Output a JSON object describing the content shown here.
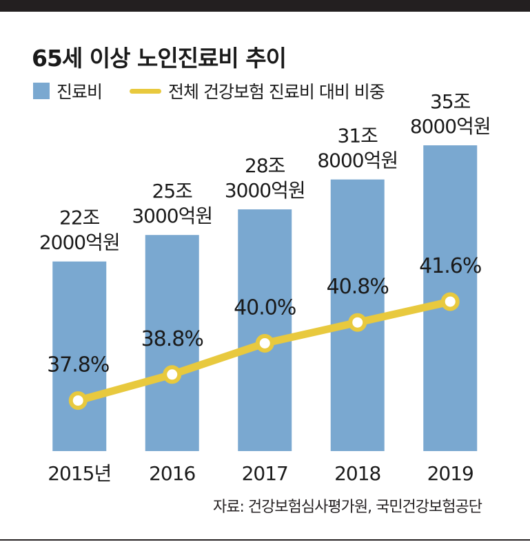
{
  "title": "65세 이상 노인진료비 추이",
  "legend": {
    "bar_label": "진료비",
    "line_label": "전체 건강보험 진료비 대비 비중"
  },
  "source": "자료: 건강보험심사평가원, 국민건강보험공단",
  "colors": {
    "bar": "#7aa8d0",
    "line": "#e8c93e",
    "marker_fill": "#ffffff",
    "text": "#1a1a1a",
    "rule": "#231f20"
  },
  "chart_data": {
    "type": "bar",
    "categories": [
      "2015년",
      "2016",
      "2017",
      "2018",
      "2019"
    ],
    "series": [
      {
        "name": "진료비",
        "type": "bar",
        "values": [
          22.2,
          25.3,
          28.3,
          31.8,
          35.8
        ],
        "unit": "조원",
        "labels": [
          [
            "22조",
            "2000억원"
          ],
          [
            "25조",
            "3000억원"
          ],
          [
            "28조",
            "3000억원"
          ],
          [
            "31조",
            "8000억원"
          ],
          [
            "35조",
            "8000억원"
          ]
        ]
      },
      {
        "name": "전체 건강보험 진료비 대비 비중",
        "type": "line",
        "values": [
          37.8,
          38.8,
          40.0,
          40.8,
          41.6
        ],
        "unit": "%",
        "labels": [
          "37.8%",
          "38.8%",
          "40.0%",
          "40.8%",
          "41.6%"
        ]
      }
    ],
    "legend": "top-left",
    "grid": false
  }
}
